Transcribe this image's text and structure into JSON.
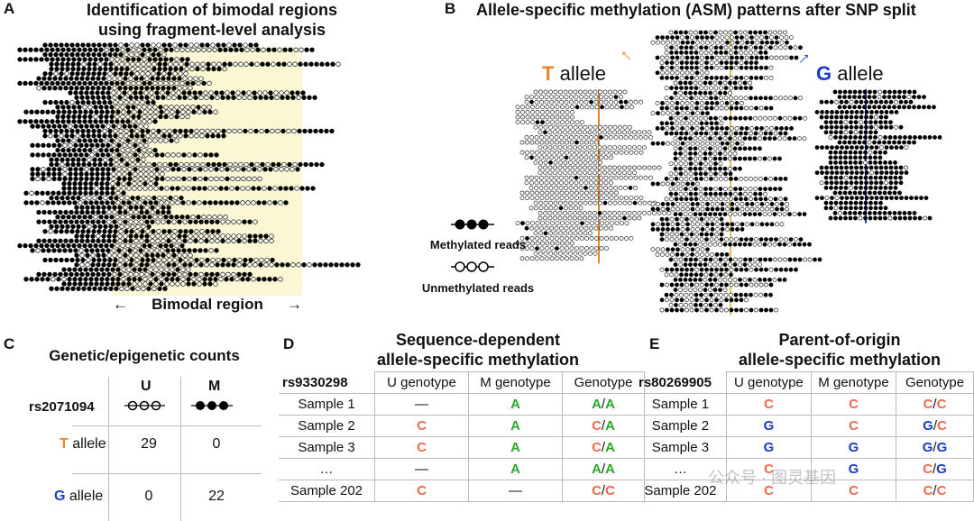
{
  "panelA": {
    "letter": "A",
    "title_line1": "Identification of bimodal regions",
    "title_line2": "using fragment-level analysis",
    "region_label": "Bimodal region"
  },
  "panelB": {
    "letter": "B",
    "title": "Allele-specific methylation (ASM) patterns after SNP split",
    "t_letter": "T",
    "t_word": "allele",
    "g_letter": "G",
    "g_word": "allele",
    "legend_methylated": "Methylated reads",
    "legend_unmethylated": "Unmethylated reads",
    "colors": {
      "t_allele": "#e5892a",
      "g_allele": "#1a3cc8",
      "highlight": "#fbf6d3"
    }
  },
  "panelC": {
    "letter": "C",
    "title": "Genetic/epigenetic counts",
    "snp": "rs2071094",
    "col_u": "U",
    "col_m": "M",
    "rows": [
      {
        "allele": "T",
        "word": "allele",
        "u": "29",
        "m": "0"
      },
      {
        "allele": "G",
        "word": "allele",
        "u": "0",
        "m": "22"
      }
    ]
  },
  "panelD": {
    "letter": "D",
    "title_line1": "Sequence-dependent",
    "title_line2": "allele-specific methylation",
    "snp": "rs9330298",
    "headers": [
      "U genotype",
      "M genotype",
      "Genotype"
    ],
    "rows": [
      {
        "sample": "Sample 1",
        "u": "—",
        "m": "A",
        "g1": "A",
        "g2": "A"
      },
      {
        "sample": "Sample 2",
        "u": "C",
        "m": "A",
        "g1": "C",
        "g2": "A"
      },
      {
        "sample": "Sample 3",
        "u": "C",
        "m": "A",
        "g1": "C",
        "g2": "A"
      },
      {
        "sample": "…",
        "u": "—",
        "m": "A",
        "g1": "A",
        "g2": "A"
      },
      {
        "sample": "Sample 202",
        "u": "C",
        "m": "—",
        "g1": "C",
        "g2": "C"
      }
    ]
  },
  "panelE": {
    "letter": "E",
    "title_line1": "Parent-of-origin",
    "title_line2": "allele-specific methylation",
    "snp": "rs80269905",
    "headers": [
      "U genotype",
      "M genotype",
      "Genotype"
    ],
    "rows": [
      {
        "sample": "Sample 1",
        "u": "C",
        "m": "C",
        "g1": "C",
        "g2": "C"
      },
      {
        "sample": "Sample 2",
        "u": "G",
        "m": "C",
        "g1": "G",
        "g2": "C"
      },
      {
        "sample": "Sample 3",
        "u": "G",
        "m": "G",
        "g1": "G",
        "g2": "G"
      },
      {
        "sample": "…",
        "u": "C",
        "m": "G",
        "g1": "C",
        "g2": "G"
      },
      {
        "sample": "Sample 202",
        "u": "C",
        "m": "C",
        "g1": "C",
        "g2": "C"
      }
    ]
  },
  "watermark": "公众号 · 图灵基因"
}
